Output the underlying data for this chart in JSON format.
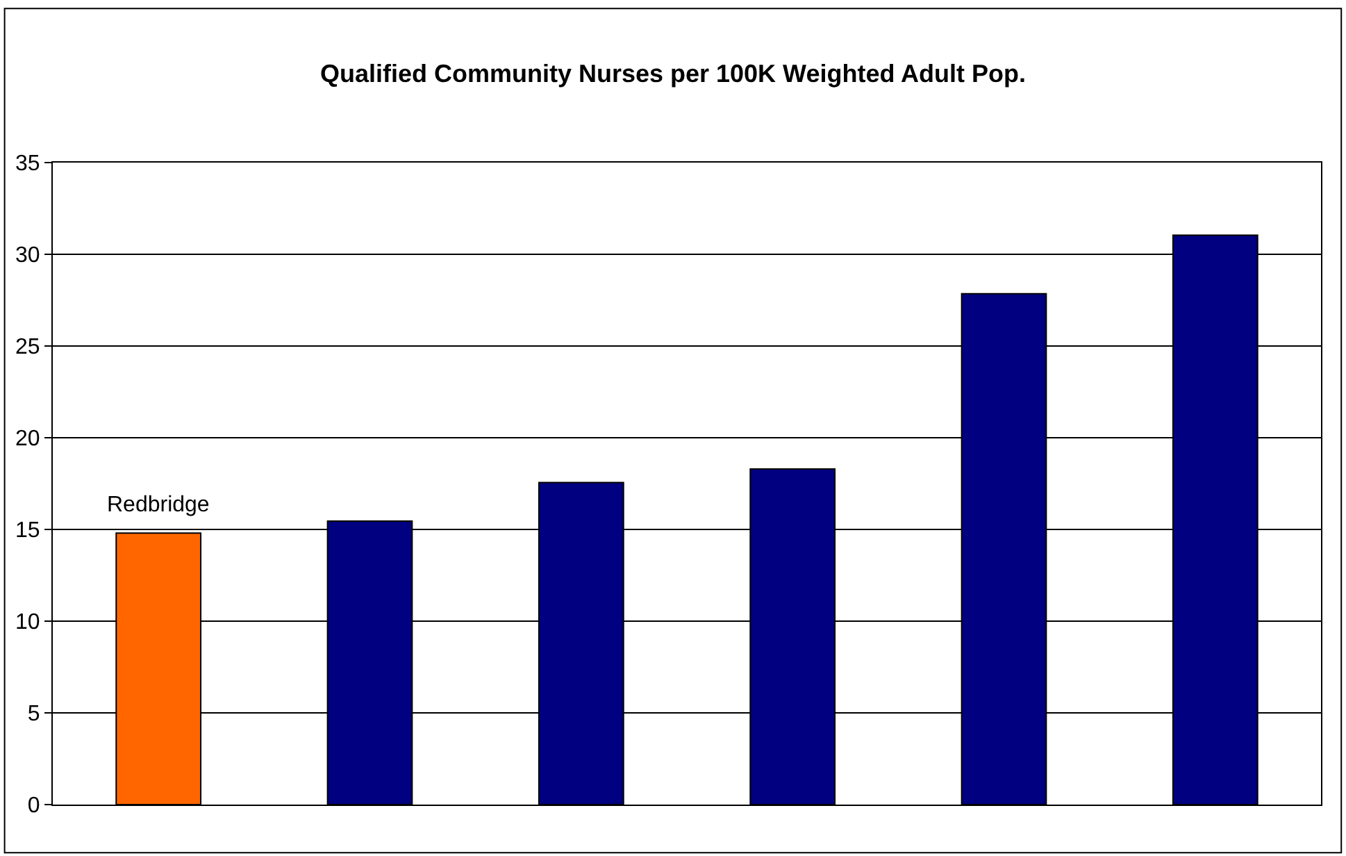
{
  "chart_data": {
    "type": "bar",
    "title": "Qualified Community Nurses per 100K Weighted Adult Pop.",
    "categories": [
      "Redbridge",
      null,
      null,
      null,
      null,
      null
    ],
    "values": [
      14.8,
      15.45,
      17.56,
      18.3,
      27.85,
      31.04
    ],
    "colors": [
      "#ff6600",
      "#000080",
      "#000080",
      "#000080",
      "#000080",
      "#000080"
    ],
    "ylim": [
      0,
      35
    ],
    "yticks": [
      0,
      5,
      10,
      15,
      20,
      25,
      30,
      35
    ],
    "grid": "y",
    "tick_labels": "y"
  }
}
